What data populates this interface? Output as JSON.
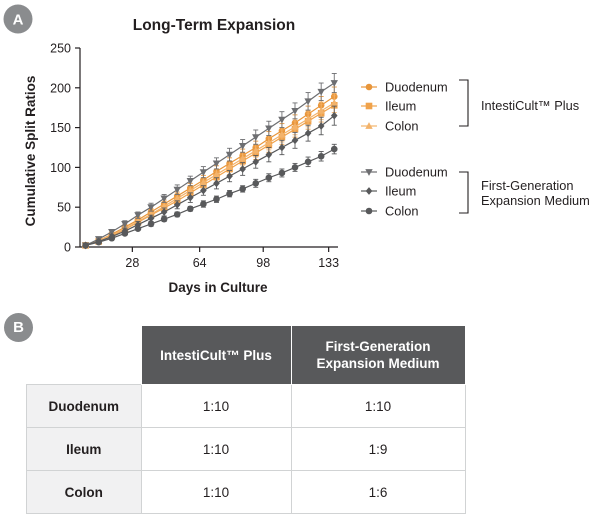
{
  "panel_a": {
    "badge": "A"
  },
  "panel_b": {
    "badge": "B"
  },
  "chart_data": {
    "type": "line",
    "title": "Long-Term Expansion",
    "xlabel": "Days in Culture",
    "ylabel": "Cumulative Split Ratios",
    "xticks": [
      28,
      64,
      98,
      133
    ],
    "yticks": [
      0,
      50,
      100,
      150,
      200,
      250
    ],
    "xlim": [
      0,
      138
    ],
    "ylim": [
      0,
      250
    ],
    "legend_groups": [
      {
        "label": "IntestiCult™ Plus",
        "series_names": [
          "Duodenum",
          "Ileum",
          "Colon"
        ]
      },
      {
        "label": "First-Generation Expansion Medium",
        "label_lines": [
          "First-Generation",
          "Expansion Medium"
        ],
        "series_names": [
          "Duodenum",
          "Ileum",
          "Colon"
        ]
      }
    ],
    "series": [
      {
        "name": "Duodenum",
        "group": "IntestiCult™ Plus",
        "color": "#e8963b",
        "marker": "circle",
        "x": [
          3,
          10,
          17,
          24,
          31,
          38,
          45,
          52,
          59,
          66,
          73,
          80,
          87,
          94,
          101,
          108,
          115,
          122,
          129,
          136
        ],
        "y": [
          2,
          8,
          16,
          25,
          34,
          44,
          54,
          64,
          74,
          84,
          95,
          105,
          115,
          125,
          136,
          146,
          156,
          167,
          178,
          189
        ],
        "err": [
          1,
          2,
          3,
          3,
          4,
          4,
          5,
          5,
          6,
          6,
          7,
          7,
          8,
          8,
          9,
          9,
          10,
          10,
          11,
          12
        ]
      },
      {
        "name": "Ileum",
        "group": "IntestiCult™ Plus",
        "color": "#f0a24b",
        "marker": "square",
        "x": [
          3,
          10,
          17,
          24,
          31,
          38,
          45,
          52,
          59,
          66,
          73,
          80,
          87,
          94,
          101,
          108,
          115,
          122,
          129,
          136
        ],
        "y": [
          2,
          7,
          14,
          22,
          31,
          40,
          49,
          58,
          68,
          78,
          88,
          98,
          108,
          118,
          128,
          138,
          148,
          158,
          168,
          178
        ],
        "err": [
          1,
          2,
          3,
          3,
          4,
          4,
          5,
          5,
          6,
          6,
          7,
          7,
          8,
          8,
          9,
          9,
          10,
          10,
          11,
          12
        ]
      },
      {
        "name": "Colon",
        "group": "IntestiCult™ Plus",
        "color": "#f3b36b",
        "marker": "triangle-up",
        "x": [
          3,
          10,
          17,
          24,
          31,
          38,
          45,
          52,
          59,
          66,
          73,
          80,
          87,
          94,
          101,
          108,
          115,
          122,
          129,
          136
        ],
        "y": [
          2,
          8,
          15,
          23,
          32,
          41,
          51,
          61,
          71,
          81,
          91,
          101,
          111,
          121,
          131,
          141,
          151,
          161,
          171,
          181
        ],
        "err": [
          1,
          2,
          3,
          3,
          4,
          4,
          5,
          5,
          6,
          6,
          7,
          7,
          8,
          8,
          9,
          9,
          10,
          10,
          11,
          12
        ]
      },
      {
        "name": "Duodenum",
        "group": "First-Generation Expansion Medium",
        "color": "#6d6e71",
        "marker": "triangle-down",
        "x": [
          3,
          10,
          17,
          24,
          31,
          38,
          45,
          52,
          59,
          66,
          73,
          80,
          87,
          94,
          101,
          108,
          115,
          122,
          129,
          136
        ],
        "y": [
          2,
          10,
          19,
          29,
          40,
          50,
          61,
          72,
          83,
          94,
          105,
          116,
          127,
          138,
          149,
          160,
          171,
          183,
          195,
          206
        ],
        "err": [
          1,
          2,
          3,
          4,
          4,
          5,
          5,
          6,
          6,
          7,
          7,
          8,
          8,
          9,
          9,
          10,
          10,
          11,
          11,
          12
        ]
      },
      {
        "name": "Ileum",
        "group": "First-Generation Expansion Medium",
        "color": "#58595b",
        "marker": "diamond",
        "x": [
          3,
          10,
          17,
          24,
          31,
          38,
          45,
          52,
          59,
          66,
          73,
          80,
          87,
          94,
          101,
          108,
          115,
          122,
          129,
          136
        ],
        "y": [
          2,
          7,
          13,
          20,
          28,
          36,
          44,
          53,
          62,
          71,
          80,
          89,
          98,
          107,
          116,
          125,
          134,
          143,
          152,
          165
        ],
        "err": [
          1,
          2,
          3,
          3,
          4,
          4,
          5,
          5,
          6,
          6,
          7,
          7,
          8,
          8,
          9,
          9,
          10,
          10,
          11,
          12
        ]
      },
      {
        "name": "Colon",
        "group": "First-Generation Expansion Medium",
        "color": "#58595b",
        "marker": "circle",
        "x": [
          3,
          10,
          17,
          24,
          31,
          38,
          45,
          52,
          59,
          66,
          73,
          80,
          87,
          94,
          101,
          108,
          115,
          122,
          129,
          136
        ],
        "y": [
          2,
          6,
          11,
          17,
          23,
          29,
          35,
          41,
          48,
          54,
          60,
          67,
          73,
          80,
          87,
          93,
          100,
          107,
          114,
          123
        ],
        "err": [
          1,
          1,
          2,
          2,
          2,
          3,
          3,
          3,
          3,
          4,
          4,
          4,
          4,
          5,
          5,
          5,
          5,
          6,
          6,
          6
        ]
      }
    ]
  },
  "table": {
    "col_headers": [
      {
        "line1": "IntestiCult™ Plus",
        "line2": ""
      },
      {
        "line1": "First-Generation",
        "line2": "Expansion Medium"
      }
    ],
    "rows": [
      {
        "label": "Duodenum",
        "values": [
          "1:10",
          "1:10"
        ]
      },
      {
        "label": "Ileum",
        "values": [
          "1:10",
          "1:9"
        ]
      },
      {
        "label": "Colon",
        "values": [
          "1:10",
          "1:6"
        ]
      }
    ]
  }
}
